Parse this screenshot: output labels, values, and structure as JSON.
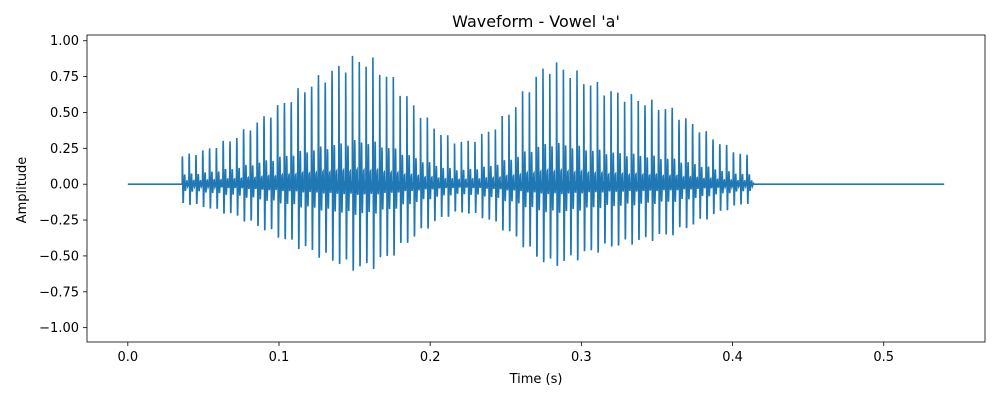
{
  "chart_data": {
    "type": "line",
    "title": "Waveform - Vowel 'a'",
    "xlabel": "Time (s)",
    "ylabel": "Amplitude",
    "xlim": [
      -0.027,
      0.567
    ],
    "ylim": [
      -1.1,
      1.04
    ],
    "xticks": [
      0.0,
      0.1,
      0.2,
      0.3,
      0.4,
      0.5
    ],
    "xtick_labels": [
      "0.0",
      "0.1",
      "0.2",
      "0.3",
      "0.4",
      "0.5"
    ],
    "yticks": [
      1.0,
      0.75,
      0.5,
      0.25,
      0.0,
      -0.25,
      -0.5,
      -0.75,
      -1.0
    ],
    "ytick_labels": [
      "1.00",
      "0.75",
      "0.50",
      "0.25",
      "0.00",
      "−0.25",
      "−0.50",
      "−0.75",
      "−1.00"
    ],
    "grid": false,
    "series": [
      {
        "color": "#1f77b4",
        "duration": 0.54,
        "voiced_start": 0.036,
        "voiced_end": 0.414,
        "pitch_period": 0.0045,
        "peak_amplitude": 1.0,
        "envelope": [
          [
            0.036,
            0.22
          ],
          [
            0.05,
            0.26
          ],
          [
            0.07,
            0.36
          ],
          [
            0.09,
            0.52
          ],
          [
            0.11,
            0.7
          ],
          [
            0.13,
            0.85
          ],
          [
            0.15,
            0.98
          ],
          [
            0.16,
            0.97
          ],
          [
            0.175,
            0.82
          ],
          [
            0.19,
            0.6
          ],
          [
            0.205,
            0.42
          ],
          [
            0.215,
            0.34
          ],
          [
            0.225,
            0.33
          ],
          [
            0.24,
            0.42
          ],
          [
            0.255,
            0.6
          ],
          [
            0.27,
            0.84
          ],
          [
            0.28,
            0.94
          ],
          [
            0.29,
            0.9
          ],
          [
            0.305,
            0.8
          ],
          [
            0.32,
            0.72
          ],
          [
            0.34,
            0.66
          ],
          [
            0.36,
            0.58
          ],
          [
            0.38,
            0.42
          ],
          [
            0.395,
            0.3
          ],
          [
            0.405,
            0.24
          ],
          [
            0.414,
            0.21
          ]
        ]
      }
    ]
  }
}
